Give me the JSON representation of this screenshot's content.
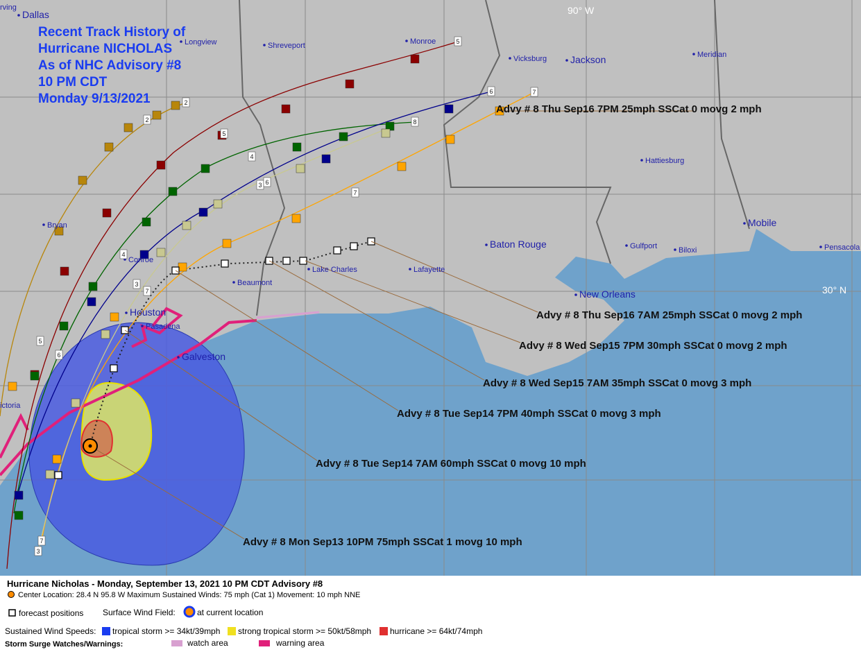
{
  "title": [
    "Recent Track History of",
    "Hurricane NICHOLAS",
    "As of NHC Advisory #8",
    "10 PM CDT",
    "Monday 9/13/2021"
  ],
  "graticule_labels": [
    "90° W",
    "30° N"
  ],
  "cities": [
    "rving",
    "Dallas",
    "Longview",
    "Shreveport",
    "Monroe",
    "Vicksburg",
    "Jackson",
    "Meridian",
    "Bryan",
    "Conroe",
    "Houston",
    "Pasadena",
    "Galveston",
    "Beaumont",
    "Lake Charles",
    "Lafayette",
    "Baton Rouge",
    "Hattiesburg",
    "Mobile",
    "Gulfport",
    "Biloxi",
    "Pensacola",
    "New Orleans",
    "ictoria"
  ],
  "track_labels": [
    "5",
    "6",
    "7",
    "2",
    "2",
    "5",
    "4",
    "3",
    "6",
    "8",
    "7",
    "4",
    "3",
    "7",
    "5",
    "6",
    "7",
    "3"
  ],
  "advisories": [
    "Advy # 8 Thu Sep16 7PM  25mph SSCat 0 movg 2 mph",
    "Advy # 8 Thu Sep16 7AM  25mph SSCat 0 movg 2 mph",
    "Advy # 8 Wed Sep15 7PM  30mph SSCat 0 movg 2 mph",
    "Advy # 8 Wed Sep15 7AM  35mph SSCat 0 movg 3 mph",
    "Advy # 8 Tue Sep14 7PM  40mph SSCat 0 movg 3 mph",
    "Advy # 8 Tue Sep14 7AM  60mph SSCat 0 movg 10 mph",
    "Advy # 8 Mon Sep13 10PM  75mph SSCat 1 movg 10 mph"
  ],
  "footer": {
    "heading": "Hurricane Nicholas  -  Monday, September 13, 2021  10 PM CDT   Advisory #8",
    "center": "Center Location: 28.4 N  95.8 W   Maximum Sustained Winds: 75 mph (Cat 1) Movement: 10 mph NNE",
    "forecast": "forecast positions",
    "surface_wind": "Surface Wind Field:",
    "current": "at current location",
    "speeds_label": "Sustained Wind Speeds:",
    "speeds": [
      "tropical storm >= 34kt/39mph",
      "strong tropical storm >= 50kt/58mph",
      "hurricane >= 64kt/74mph"
    ],
    "surge_label": "Storm Surge Watches/Warnings:",
    "surge": [
      "watch area",
      "warning area"
    ]
  }
}
